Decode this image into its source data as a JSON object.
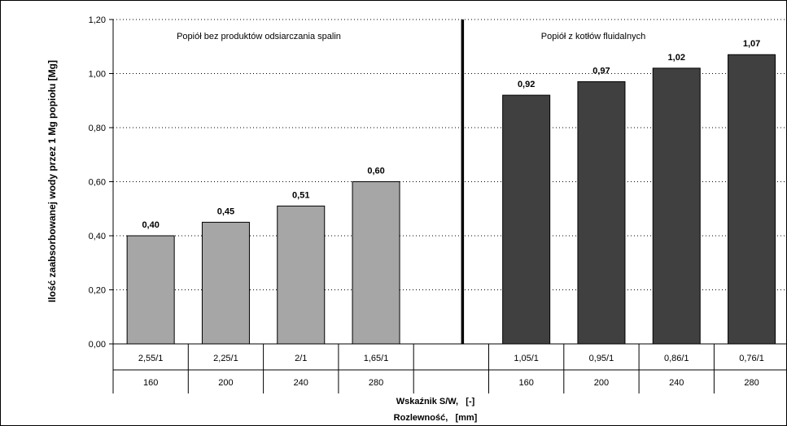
{
  "chart_data": {
    "type": "bar",
    "ylabel": "Ilość zaabsorbowanej wody przez 1 Mg popiołu [Mg]",
    "xlabel_lines": [
      "Wskaźnik S/W,   [-]",
      "Rozlewność,   [mm]"
    ],
    "ylim": [
      0,
      1.2
    ],
    "yticks": [
      "0,00",
      "0,20",
      "0,40",
      "0,60",
      "0,80",
      "1,00",
      "1,20"
    ],
    "grid": true,
    "groups": [
      {
        "label": "Popiół bez produktów odsiarczania spalin",
        "color": "#a6a6a6",
        "categories": [
          {
            "sw": "2,55/1",
            "flow": "160",
            "value": 0.4,
            "value_label": "0,40"
          },
          {
            "sw": "2,25/1",
            "flow": "200",
            "value": 0.45,
            "value_label": "0,45"
          },
          {
            "sw": "2/1",
            "flow": "240",
            "value": 0.51,
            "value_label": "0,51"
          },
          {
            "sw": "1,65/1",
            "flow": "280",
            "value": 0.6,
            "value_label": "0,60"
          }
        ]
      },
      {
        "label": "Popiół z kotłów fluidalnych",
        "color": "#404040",
        "categories": [
          {
            "sw": "1,05/1",
            "flow": "160",
            "value": 0.92,
            "value_label": "0,92"
          },
          {
            "sw": "0,95/1",
            "flow": "200",
            "value": 0.97,
            "value_label": "0,97"
          },
          {
            "sw": "0,86/1",
            "flow": "240",
            "value": 1.02,
            "value_label": "1,02"
          },
          {
            "sw": "0,76/1",
            "flow": "280",
            "value": 1.07,
            "value_label": "1,07"
          }
        ]
      }
    ]
  }
}
